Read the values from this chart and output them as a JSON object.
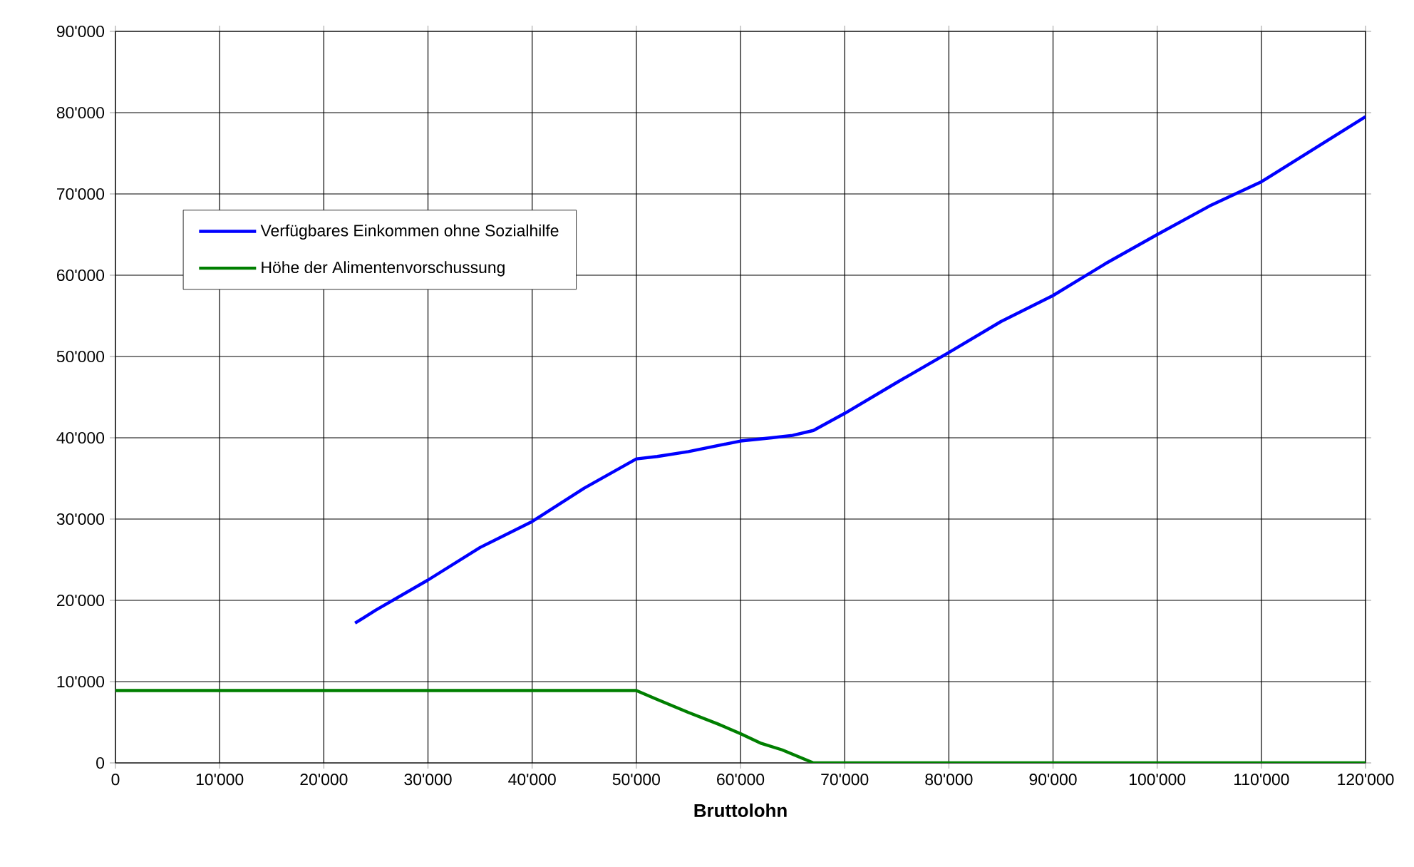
{
  "chart_data": {
    "type": "line",
    "xlabel": "Bruttolohn",
    "series": [
      {
        "name": "Verfügbares Einkommen ohne Sozialhilfe",
        "color": "#0000ff",
        "x": [
          23000,
          25000,
          30000,
          35000,
          40000,
          45000,
          50000,
          52000,
          55000,
          60000,
          63000,
          65000,
          67000,
          70000,
          75000,
          80000,
          85000,
          90000,
          95000,
          100000,
          105000,
          110000,
          115000,
          120000
        ],
        "values": [
          17200,
          18800,
          22500,
          26500,
          29700,
          33800,
          37400,
          37700,
          38300,
          39600,
          40000,
          40300,
          40900,
          43000,
          46800,
          50500,
          54300,
          57500,
          61400,
          65000,
          68500,
          71500,
          75500,
          79500
        ]
      },
      {
        "name": "Höhe der Alimentenvorschussung",
        "color": "#007f00",
        "x": [
          0,
          50000,
          52000,
          55000,
          58000,
          60000,
          62000,
          64000,
          67000,
          120000
        ],
        "values": [
          8900,
          8900,
          7800,
          6200,
          4700,
          3600,
          2400,
          1600,
          0,
          0
        ]
      }
    ],
    "xlim": [
      0,
      120000
    ],
    "ylim": [
      0,
      90000
    ],
    "xticks": [
      0,
      {
        "value": 10000,
        "label": "10'000"
      },
      {
        "value": 20000,
        "label": "20'000"
      },
      {
        "value": 30000,
        "label": "30'000"
      },
      {
        "value": 40000,
        "label": "40'000"
      },
      {
        "value": 50000,
        "label": "50'000"
      },
      {
        "value": 60000,
        "label": "60'000"
      },
      {
        "value": 70000,
        "label": "70'000"
      },
      {
        "value": 80000,
        "label": "80'000"
      },
      {
        "value": 90000,
        "label": "90'000"
      },
      {
        "value": 100000,
        "label": "100'000"
      },
      {
        "value": 110000,
        "label": "110'000"
      },
      {
        "value": 120000,
        "label": "120'000"
      }
    ],
    "yticks": [
      0,
      {
        "value": 10000,
        "label": "10'000"
      },
      {
        "value": 20000,
        "label": "20'000"
      },
      {
        "value": 30000,
        "label": "30'000"
      },
      {
        "value": 40000,
        "label": "40'000"
      },
      {
        "value": 50000,
        "label": "50'000"
      },
      {
        "value": 60000,
        "label": "60'000"
      },
      {
        "value": 70000,
        "label": "70'000"
      },
      {
        "value": 80000,
        "label": "80'000"
      },
      {
        "value": 90000,
        "label": "90'000"
      }
    ],
    "grid": true,
    "legend": "top left",
    "marker": "none",
    "line_style": "solid"
  }
}
